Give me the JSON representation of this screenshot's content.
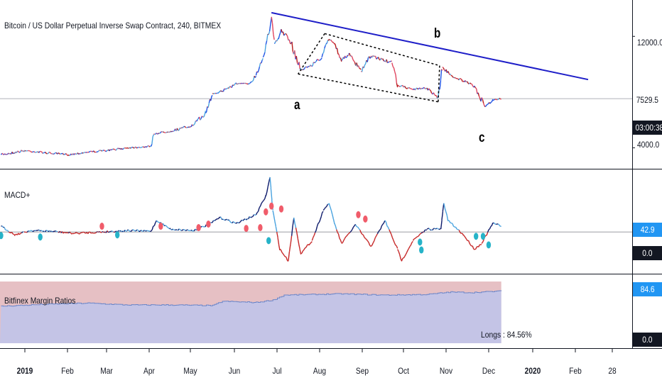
{
  "chart": {
    "title": "Bitcoin / US Dollar Perpetual Inverse Swap Contract, 240, BITMEX",
    "annotations": [
      "a",
      "b",
      "c"
    ],
    "price_axis": {
      "ticks": [
        "12000.0",
        "4000.0"
      ],
      "last_price": "7529.5",
      "countdown": "03:00:38"
    },
    "colors": {
      "up": "#1e53e5",
      "up_light": "#4aa3df",
      "down": "#e0455f",
      "down_dark": "#b71c1c",
      "trendline": "#1e1ec8",
      "macd_up": "#0d1a6b",
      "macd_up_light": "#4aa3df",
      "macd_down": "#c62828",
      "dot_red": "#f05c6a",
      "dot_cyan": "#26b3c8",
      "ratio_shorts": "#e6c0c4",
      "ratio_longs": "#c4c4e6",
      "ratio_line": "#6b86c9",
      "badge_blue": "#2196f3",
      "badge_dark": "#131722"
    }
  },
  "macd": {
    "label": "MACD+",
    "last_value": "42.9",
    "zero_label": "0.0"
  },
  "margin": {
    "label": "Bitfinex Margin Ratios",
    "longs_label": "Longs : 84.56%",
    "last_value": "84.6",
    "zero_label": "0.0"
  },
  "time_axis": {
    "ticks": [
      "2019",
      "Feb",
      "Mar",
      "Apr",
      "May",
      "Jun",
      "Jul",
      "Aug",
      "Sep",
      "Oct",
      "Nov",
      "Dec",
      "2020",
      "Feb",
      "28"
    ],
    "bold": [
      "2019",
      "2020"
    ]
  },
  "chart_data": [
    {
      "type": "line",
      "title": "Bitcoin / US Dollar Perpetual Inverse Swap Contract, 240, BITMEX",
      "x": [
        "2018-12-15",
        "2019-01-01",
        "2019-01-15",
        "2019-02-01",
        "2019-02-15",
        "2019-03-01",
        "2019-03-15",
        "2019-04-01",
        "2019-04-03",
        "2019-04-15",
        "2019-05-01",
        "2019-05-10",
        "2019-05-15",
        "2019-05-20",
        "2019-06-01",
        "2019-06-10",
        "2019-06-15",
        "2019-06-20",
        "2019-06-26",
        "2019-06-28",
        "2019-07-01",
        "2019-07-03",
        "2019-07-10",
        "2019-07-17",
        "2019-07-24",
        "2019-08-01",
        "2019-08-06",
        "2019-08-10",
        "2019-08-15",
        "2019-08-20",
        "2019-08-29",
        "2019-09-05",
        "2019-09-20",
        "2019-09-24",
        "2019-10-01",
        "2019-10-06",
        "2019-10-15",
        "2019-10-23",
        "2019-10-26",
        "2019-11-01",
        "2019-11-10",
        "2019-11-18",
        "2019-11-25",
        "2019-12-01",
        "2019-12-07"
      ],
      "y": [
        3500,
        3800,
        3650,
        3500,
        3700,
        3800,
        4000,
        4100,
        5000,
        5200,
        5600,
        6500,
        7900,
        8000,
        8600,
        8600,
        9200,
        10500,
        13400,
        11500,
        11800,
        12500,
        11500,
        9600,
        9900,
        10500,
        11800,
        11500,
        10300,
        10700,
        9500,
        10600,
        10100,
        8500,
        8300,
        8200,
        8300,
        7600,
        9800,
        9200,
        8800,
        8400,
        7000,
        7400,
        7529.5
      ],
      "ylabel": "",
      "ylim": [
        2800,
        14000
      ],
      "y_ticks": [
        4000,
        12000
      ],
      "trendline": {
        "x": [
          "2019-06-26",
          "2020-02-07"
        ],
        "y": [
          13700,
          8900
        ]
      },
      "channel_upper": {
        "x": [
          "2019-08-03",
          "2019-10-24"
        ],
        "y": [
          12200,
          9900
        ]
      },
      "channel_lower": {
        "x": [
          "2019-07-15",
          "2019-10-23"
        ],
        "y": [
          9300,
          7300
        ]
      }
    },
    {
      "type": "line",
      "title": "MACD+",
      "x": [
        "2018-12-15",
        "2018-12-25",
        "2019-01-05",
        "2019-01-20",
        "2019-02-05",
        "2019-02-25",
        "2019-03-15",
        "2019-04-01",
        "2019-04-05",
        "2019-04-15",
        "2019-05-01",
        "2019-05-12",
        "2019-05-20",
        "2019-06-01",
        "2019-06-15",
        "2019-06-22",
        "2019-06-25",
        "2019-06-27",
        "2019-07-02",
        "2019-07-08",
        "2019-07-12",
        "2019-07-17",
        "2019-07-25",
        "2019-08-02",
        "2019-08-06",
        "2019-08-10",
        "2019-08-15",
        "2019-08-25",
        "2019-09-05",
        "2019-09-15",
        "2019-09-24",
        "2019-09-27",
        "2019-10-05",
        "2019-10-15",
        "2019-10-25",
        "2019-10-27",
        "2019-10-30",
        "2019-11-10",
        "2019-11-18",
        "2019-11-23",
        "2019-12-01",
        "2019-12-07"
      ],
      "y": [
        40,
        -20,
        10,
        5,
        -10,
        0,
        10,
        5,
        80,
        20,
        10,
        50,
        100,
        60,
        120,
        250,
        380,
        150,
        -120,
        -200,
        100,
        -150,
        -60,
        150,
        200,
        60,
        -80,
        50,
        -100,
        80,
        -120,
        -200,
        -60,
        20,
        20,
        200,
        80,
        -20,
        -120,
        -80,
        60,
        42.9
      ],
      "ylim": [
        -280,
        380
      ]
    },
    {
      "type": "area",
      "title": "Bitfinex Margin Ratios",
      "series": [
        {
          "name": "Longs",
          "x": [
            "2018-12-15",
            "2019-01-15",
            "2019-02-15",
            "2019-03-15",
            "2019-04-15",
            "2019-05-15",
            "2019-05-22",
            "2019-06-15",
            "2019-06-27",
            "2019-07-05",
            "2019-08-15",
            "2019-09-15",
            "2019-10-15",
            "2019-11-01",
            "2019-11-15",
            "2019-12-07"
          ],
          "y": [
            60,
            63,
            65,
            62,
            62,
            61,
            68,
            66,
            70,
            78,
            80,
            78,
            79,
            83,
            82,
            84.56
          ]
        }
      ],
      "ylim": [
        0,
        100
      ]
    }
  ]
}
